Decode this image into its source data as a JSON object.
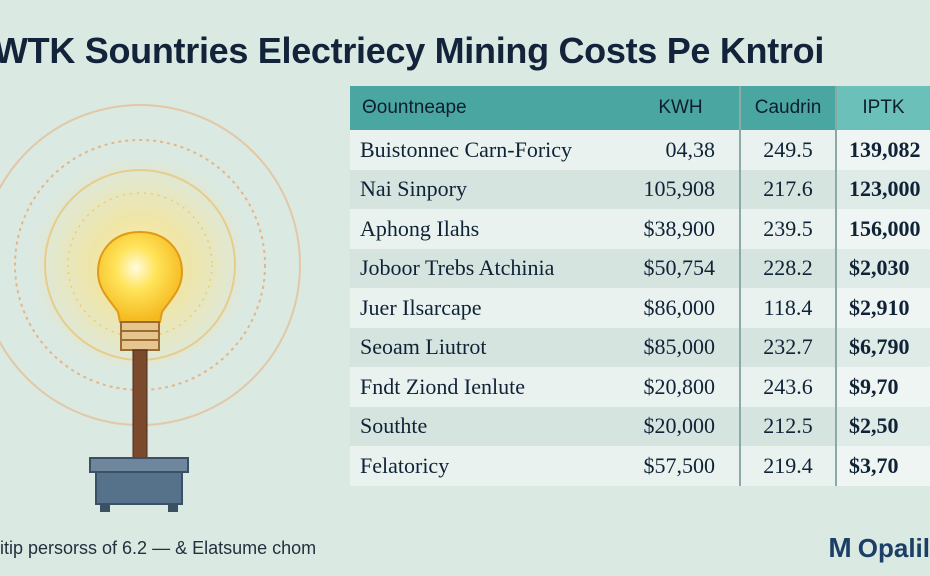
{
  "title": "WTK Sountries Electriecy Mining Costs Pe Kntroi",
  "chart_data": {
    "type": "table",
    "columns": [
      "Θountneape",
      "KWH",
      "Caudrin",
      "IPTK"
    ],
    "rows": [
      [
        "Buistonnec Carn-Foricy",
        "04,38",
        "249.5",
        "139,082"
      ],
      [
        "Nai Sinpory",
        "105,908",
        "217.6",
        "123,000"
      ],
      [
        "Aphong Ilahs",
        "$38,900",
        "239.5",
        "156,000"
      ],
      [
        "Joboor Trebs Atchinia",
        "$50,754",
        "228.2",
        "$2,030"
      ],
      [
        "Juer Ilsarcape",
        "$86,000",
        "118.4",
        "$2,910"
      ],
      [
        "Seoam Liutrot",
        "$85,000",
        "232.7",
        "$6,790"
      ],
      [
        "Fndt Ziond Ienlute",
        "$20,800",
        "243.6",
        "$9,70"
      ],
      [
        "Southte",
        "$20,000",
        "212.5",
        "$2,50"
      ],
      [
        "Felatoricy",
        "$57,500",
        "219.4",
        "$3,70"
      ]
    ]
  },
  "footer": "itip persorss of 6.2 — & Elatsume chom",
  "brand": {
    "mark": "M",
    "name": "Opalil"
  },
  "colors": {
    "header": "#4aa6a1",
    "background": "#dbe9e3",
    "bulb": "#ffd23a",
    "base": "#5a7187"
  }
}
